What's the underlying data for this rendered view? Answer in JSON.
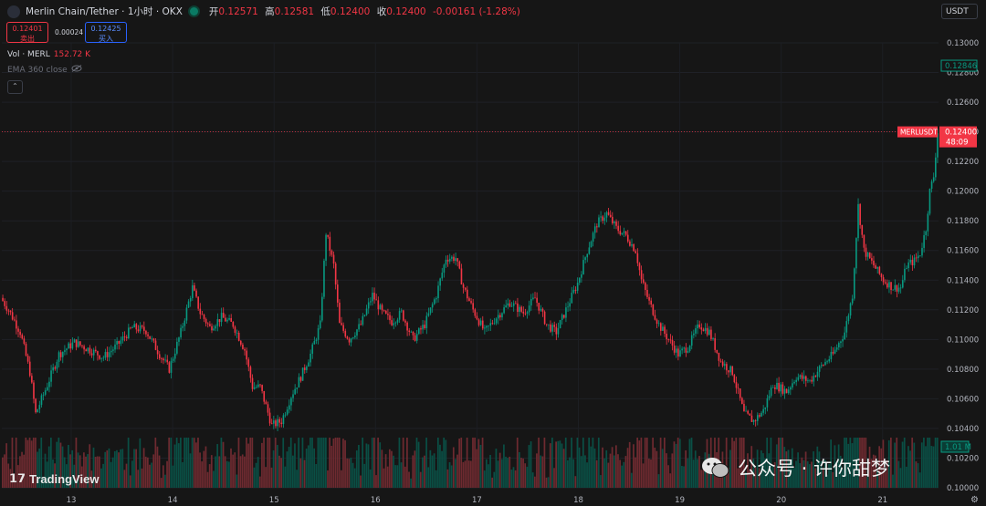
{
  "header": {
    "symbol": "Merlin Chain/Tether · 1小时 · OKX",
    "open_label": "开",
    "open": "0.12571",
    "high_label": "高",
    "high": "0.12581",
    "low_label": "低",
    "low": "0.12400",
    "close_label": "收",
    "close": "0.12400",
    "change": "-0.00161 (-1.28%)"
  },
  "trade": {
    "sell_price": "0.12401",
    "sell_label": "卖出",
    "spread": "0.00024",
    "buy_price": "0.12425",
    "buy_label": "买入"
  },
  "indicators": {
    "vol_label": "Vol · MERL",
    "vol_value": "152.72 K",
    "ema_label": "EMA 360 close"
  },
  "currency_button": "USDT",
  "branding": {
    "tradingview": "TradingView",
    "wechat": "公众号 · 许你甜梦"
  },
  "colors": {
    "up": "#089981",
    "down": "#f23645",
    "background": "#161616",
    "volume_up": "#0a4f45",
    "volume_down": "#6e2a30"
  },
  "chart_data": {
    "type": "candlestick",
    "symbol_label": "MERLUSDT",
    "last_price": "0.12400",
    "countdown": "48:09",
    "high_marker": "0.12846",
    "volume_marker": "1.01 M",
    "x_ticks": [
      "13",
      "14",
      "15",
      "16",
      "17",
      "18",
      "19",
      "20",
      "21"
    ],
    "y_ticks": [
      "0.13000",
      "0.12800",
      "0.12600",
      "0.12400",
      "0.12200",
      "0.12000",
      "0.11800",
      "0.11600",
      "0.11400",
      "0.11200",
      "0.11000",
      "0.10800",
      "0.10600",
      "0.10400",
      "0.10200",
      "0.10000"
    ],
    "ylim": [
      0.1,
      0.13
    ],
    "path": [
      [
        0,
        0.1128
      ],
      [
        4,
        0.112
      ],
      [
        10,
        0.1105
      ],
      [
        15,
        0.1078
      ],
      [
        18,
        0.105
      ],
      [
        23,
        0.1066
      ],
      [
        30,
        0.109
      ],
      [
        38,
        0.1098
      ],
      [
        46,
        0.1093
      ],
      [
        53,
        0.1088
      ],
      [
        60,
        0.1096
      ],
      [
        68,
        0.1108
      ],
      [
        75,
        0.1106
      ],
      [
        82,
        0.109
      ],
      [
        87,
        0.108
      ],
      [
        93,
        0.1105
      ],
      [
        99,
        0.1135
      ],
      [
        103,
        0.1118
      ],
      [
        108,
        0.1108
      ],
      [
        114,
        0.1115
      ],
      [
        120,
        0.111
      ],
      [
        126,
        0.1093
      ],
      [
        130,
        0.1068
      ],
      [
        134,
        0.1068
      ],
      [
        140,
        0.1042
      ],
      [
        145,
        0.1045
      ],
      [
        150,
        0.1062
      ],
      [
        155,
        0.1075
      ],
      [
        160,
        0.109
      ],
      [
        165,
        0.111
      ],
      [
        168,
        0.1172
      ],
      [
        172,
        0.115
      ],
      [
        175,
        0.111
      ],
      [
        180,
        0.11
      ],
      [
        186,
        0.111
      ],
      [
        192,
        0.113
      ],
      [
        197,
        0.1118
      ],
      [
        202,
        0.1112
      ],
      [
        207,
        0.1118
      ],
      [
        213,
        0.11
      ],
      [
        219,
        0.111
      ],
      [
        225,
        0.113
      ],
      [
        230,
        0.1155
      ],
      [
        235,
        0.1155
      ],
      [
        239,
        0.1135
      ],
      [
        244,
        0.112
      ],
      [
        250,
        0.1105
      ],
      [
        256,
        0.1115
      ],
      [
        263,
        0.1125
      ],
      [
        270,
        0.1118
      ],
      [
        276,
        0.1128
      ],
      [
        282,
        0.111
      ],
      [
        287,
        0.1105
      ],
      [
        292,
        0.112
      ],
      [
        298,
        0.1138
      ],
      [
        303,
        0.116
      ],
      [
        308,
        0.1178
      ],
      [
        313,
        0.1185
      ],
      [
        318,
        0.1175
      ],
      [
        323,
        0.117
      ],
      [
        328,
        0.116
      ],
      [
        331,
        0.114
      ],
      [
        335,
        0.1125
      ],
      [
        340,
        0.111
      ],
      [
        345,
        0.11
      ],
      [
        350,
        0.109
      ],
      [
        355,
        0.1095
      ],
      [
        361,
        0.111
      ],
      [
        366,
        0.1105
      ],
      [
        372,
        0.1085
      ],
      [
        378,
        0.1078
      ],
      [
        384,
        0.105
      ],
      [
        389,
        0.1045
      ],
      [
        394,
        0.1052
      ],
      [
        399,
        0.107
      ],
      [
        406,
        0.1065
      ],
      [
        411,
        0.1075
      ],
      [
        418,
        0.1072
      ],
      [
        424,
        0.1082
      ],
      [
        430,
        0.109
      ],
      [
        436,
        0.1105
      ],
      [
        440,
        0.113
      ],
      [
        443,
        0.119
      ],
      [
        446,
        0.116
      ],
      [
        451,
        0.115
      ],
      [
        456,
        0.114
      ],
      [
        461,
        0.1135
      ],
      [
        465,
        0.1135
      ],
      [
        468,
        0.115
      ],
      [
        472,
        0.1153
      ],
      [
        475,
        0.1158
      ],
      [
        478,
        0.1175
      ],
      [
        480,
        0.12
      ],
      [
        482,
        0.121
      ],
      [
        484,
        0.124
      ]
    ],
    "volume_bars": 484,
    "volume_ylim": [
      0,
      5.0
    ]
  }
}
